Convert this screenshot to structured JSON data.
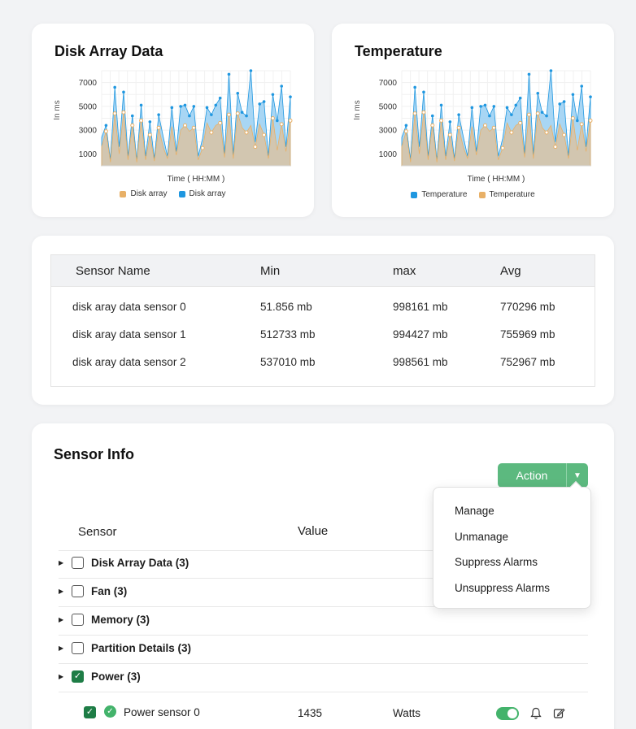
{
  "disk_chart": {
    "title": "Disk Array Data",
    "ylabel": "In ms",
    "xlabel": "Time ( HH:MM )",
    "legend": [
      {
        "label": "Disk array",
        "color": "#e8b067"
      },
      {
        "label": "Disk array",
        "color": "#1f97e0"
      }
    ]
  },
  "temp_chart": {
    "title": "Temperature",
    "ylabel": "In ms",
    "xlabel": "Time ( HH:MM )",
    "legend": [
      {
        "label": "Temperature",
        "color": "#1f97e0"
      },
      {
        "label": "Temperature",
        "color": "#e8b067"
      }
    ]
  },
  "chart_data": [
    {
      "type": "area",
      "title": "Disk Array Data",
      "xlabel": "Time ( HH:MM )",
      "ylabel": "In ms",
      "yticks": [
        1000,
        3000,
        5000,
        7000
      ],
      "ylim": [
        0,
        8000
      ],
      "series": [
        {
          "name": "Disk array",
          "color": "#1f97e0",
          "values": [
            2400,
            3400,
            500,
            6600,
            1600,
            6200,
            800,
            4200,
            500,
            5100,
            800,
            3700,
            600,
            4300,
            2500,
            800,
            4900,
            1200,
            5000,
            5100,
            4200,
            5000,
            800,
            2300,
            4900,
            4300,
            5100,
            5700,
            1000,
            7700,
            900,
            6100,
            4500,
            4200,
            8000,
            2000,
            5200,
            5400,
            800,
            6000,
            3800,
            6700,
            1600,
            5800
          ]
        },
        {
          "name": "Disk array",
          "color": "#e8b067",
          "values": [
            1600,
            2900,
            300,
            4400,
            1000,
            4500,
            500,
            3400,
            300,
            3800,
            500,
            2600,
            400,
            3200,
            1600,
            600,
            3300,
            900,
            3000,
            3400,
            2900,
            3200,
            500,
            1500,
            3600,
            2800,
            3400,
            3600,
            700,
            4300,
            600,
            4400,
            3200,
            2800,
            3400,
            1600,
            3500,
            2600,
            600,
            4000,
            1300,
            3500,
            1200,
            3800
          ]
        }
      ]
    },
    {
      "type": "area",
      "title": "Temperature",
      "xlabel": "Time ( HH:MM )",
      "ylabel": "In ms",
      "yticks": [
        1000,
        3000,
        5000,
        7000
      ],
      "ylim": [
        0,
        8000
      ],
      "series": [
        {
          "name": "Temperature",
          "color": "#1f97e0",
          "values": [
            2400,
            3400,
            500,
            6600,
            1600,
            6200,
            800,
            4200,
            500,
            5100,
            800,
            3700,
            600,
            4300,
            2500,
            800,
            4900,
            1200,
            5000,
            5100,
            4200,
            5000,
            800,
            2300,
            4900,
            4300,
            5100,
            5700,
            1000,
            7700,
            900,
            6100,
            4500,
            4200,
            8000,
            2000,
            5200,
            5400,
            800,
            6000,
            3800,
            6700,
            1600,
            5800
          ]
        },
        {
          "name": "Temperature",
          "color": "#e8b067",
          "values": [
            1600,
            2900,
            300,
            4400,
            1000,
            4500,
            500,
            3400,
            300,
            3800,
            500,
            2600,
            400,
            3200,
            1600,
            600,
            3300,
            900,
            3000,
            3400,
            2900,
            3200,
            500,
            1500,
            3600,
            2800,
            3400,
            3600,
            700,
            4300,
            600,
            4400,
            3200,
            2800,
            3400,
            1600,
            3500,
            2600,
            600,
            4000,
            1300,
            3500,
            1200,
            3800
          ]
        }
      ]
    }
  ],
  "sensor_table": {
    "headers": [
      "Sensor Name",
      "Min",
      "max",
      "Avg"
    ],
    "rows": [
      [
        "disk aray data sensor 0",
        "51.856 mb",
        "998161 mb",
        "770296 mb"
      ],
      [
        "disk aray data sensor 1",
        "512733 mb",
        "994427 mb",
        "755969 mb"
      ],
      [
        "disk aray data sensor 2",
        "537010 mb",
        "998561 mb",
        "752967 mb"
      ]
    ]
  },
  "sensor_info": {
    "title": "Sensor Info",
    "action_label": "Action",
    "col_sensor": "Sensor",
    "col_value": "Value",
    "groups": [
      {
        "label": "Disk Array Data (3)",
        "checked": false
      },
      {
        "label": "Fan (3)",
        "checked": false
      },
      {
        "label": "Memory (3)",
        "checked": false
      },
      {
        "label": "Partition Details (3)",
        "checked": false
      },
      {
        "label": "Power (3)",
        "checked": true
      }
    ],
    "child": {
      "label": "Power sensor 0",
      "value": "1435",
      "unit": "Watts",
      "enabled": true
    },
    "menu": [
      "Manage",
      "Unmanage",
      "Suppress Alarms",
      "Unsuppress Alarms"
    ],
    "colors": {
      "accent": "#5cb97f",
      "checkbox": "#1e7d46"
    }
  }
}
